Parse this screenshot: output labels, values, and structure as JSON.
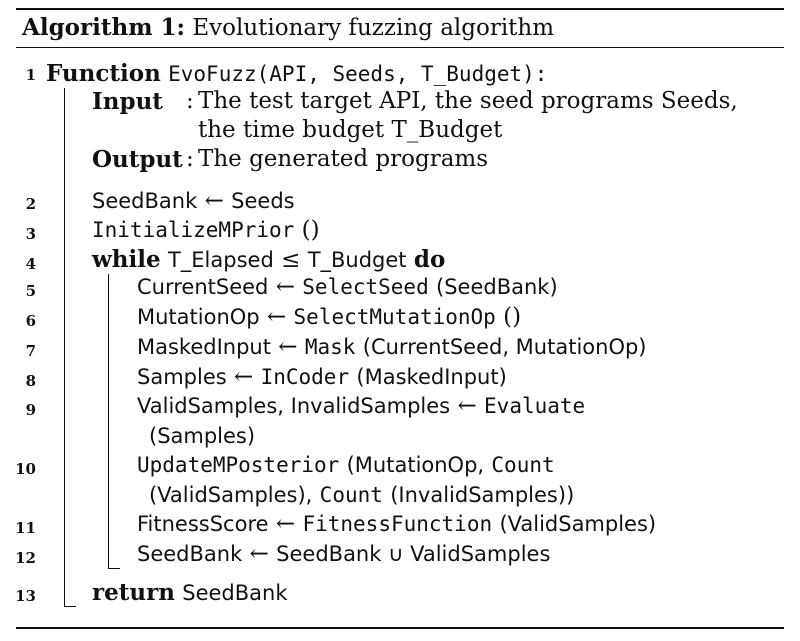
{
  "title": {
    "label": "Algorithm 1:",
    "text": "Evolutionary fuzzing algorithm"
  },
  "line_numbers": [
    "1",
    "2",
    "3",
    "4",
    "5",
    "6",
    "7",
    "8",
    "9",
    "10",
    "11",
    "12",
    "13"
  ],
  "l1": {
    "kw": "Function",
    "name": "EvoFuzz",
    "args": "(API, Seeds, T_Budget):"
  },
  "input": {
    "label": "Input",
    "colon": ":",
    "text1": "The test target API, the seed programs Seeds,",
    "text2": "the time budget T_Budget"
  },
  "output": {
    "label": "Output",
    "colon": ":",
    "text": "The generated programs"
  },
  "l2": {
    "lhs": "SeedBank",
    "arrow": "←",
    "rhs": "Seeds"
  },
  "l3": {
    "name": "InitializeMPrior",
    "args": "()"
  },
  "l4": {
    "kw": "while",
    "cond_a": "T_Elapsed",
    "le": "≤",
    "cond_b": "T_Budget",
    "do": "do"
  },
  "l5": {
    "lhs": "CurrentSeed",
    "arrow": "←",
    "fn": "SelectSeed",
    "args": "(SeedBank)"
  },
  "l6": {
    "lhs": "MutationOp",
    "arrow": "←",
    "fn": "SelectMutationOp",
    "args": "()"
  },
  "l7": {
    "lhs": "MaskedInput",
    "arrow": "←",
    "fn": "Mask",
    "args": "(CurrentSeed, MutationOp)"
  },
  "l8": {
    "lhs": "Samples",
    "arrow": "←",
    "fn": "InCoder",
    "args": "(MaskedInput)"
  },
  "l9": {
    "lhs": "ValidSamples, InvalidSamples",
    "arrow": "←",
    "fn": "Evaluate",
    "cont": "(Samples)"
  },
  "l10": {
    "fn": "UpdateMPosterior",
    "args1": "(MutationOp,",
    "fn2": "Count",
    "cont_open": "(ValidSamples),",
    "fn3": "Count",
    "cont_close": "(InvalidSamples))"
  },
  "l11": {
    "lhs": "FitnessScore",
    "arrow": "←",
    "fn": "FitnessFunction",
    "args": "(ValidSamples)"
  },
  "l12": {
    "lhs": "SeedBank",
    "arrow": "←",
    "rhs": "SeedBank ∪ ValidSamples"
  },
  "l13": {
    "kw": "return",
    "rhs": "SeedBank"
  }
}
